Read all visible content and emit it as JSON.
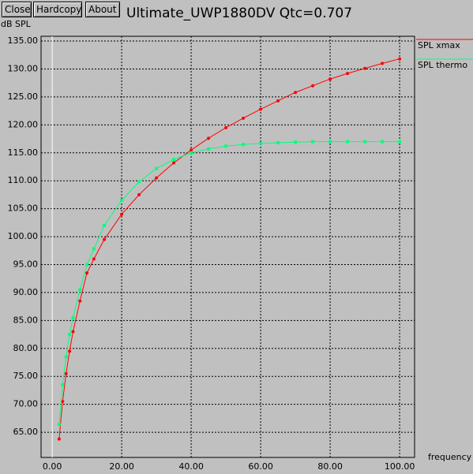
{
  "buttons": [
    "Close",
    "Hardcopy",
    "About"
  ],
  "chart_data": {
    "type": "line",
    "title": "Ultimate_UWP1880DV Qtc=0.707",
    "y_label": "dB SPL",
    "x_label": "frequency",
    "x": [
      2,
      3,
      4,
      5,
      6,
      8,
      10,
      12,
      15,
      20,
      25,
      30,
      35,
      40,
      45,
      50,
      55,
      60,
      65,
      70,
      75,
      80,
      85,
      90,
      95,
      100
    ],
    "series": [
      {
        "name": "SPL xmax",
        "color": "#ff0000",
        "marker": "circle",
        "values": [
          63.8,
          70.5,
          75.5,
          79.5,
          83,
          88.5,
          93.5,
          96,
          99.5,
          104,
          107.5,
          110.5,
          113.2,
          115.5,
          117.6,
          119.5,
          121.2,
          122.8,
          124.3,
          125.8,
          127,
          128.2,
          129.2,
          130.1,
          131,
          131.8
        ]
      },
      {
        "name": "SPL thermo",
        "color": "#00ff7f",
        "marker": "square",
        "values": [
          66.4,
          73.5,
          78.5,
          82.5,
          85.5,
          90.5,
          95,
          97.8,
          102,
          106.5,
          109.8,
          112.2,
          113.8,
          115,
          115.7,
          116.2,
          116.5,
          116.7,
          116.8,
          116.9,
          117,
          117,
          117,
          117,
          117,
          117
        ]
      }
    ],
    "xlim": [
      -3.2,
      104.3
    ],
    "ylim": [
      60.5,
      135.85
    ],
    "xticks": [
      {
        "value": 0,
        "label": "0.00"
      },
      {
        "value": 20,
        "label": "20.00"
      },
      {
        "value": 40,
        "label": "40.00"
      },
      {
        "value": 60,
        "label": "60.00"
      },
      {
        "value": 80,
        "label": "80.00"
      },
      {
        "value": 100,
        "label": "100.00"
      }
    ],
    "yticks": [
      {
        "value": 65,
        "label": "65.00"
      },
      {
        "value": 70,
        "label": "70.00"
      },
      {
        "value": 75,
        "label": "75.00"
      },
      {
        "value": 80,
        "label": "80.00"
      },
      {
        "value": 85,
        "label": "85.00"
      },
      {
        "value": 90,
        "label": "90.00"
      },
      {
        "value": 95,
        "label": "95.00"
      },
      {
        "value": 100,
        "label": "100.00"
      },
      {
        "value": 105,
        "label": "105.00"
      },
      {
        "value": 110,
        "label": "110.00"
      },
      {
        "value": 115,
        "label": "115.00"
      },
      {
        "value": 120,
        "label": "120.00"
      },
      {
        "value": 125,
        "label": "125.00"
      },
      {
        "value": 130,
        "label": "130.00"
      },
      {
        "value": 135,
        "label": "135.00"
      }
    ],
    "grid": true
  }
}
